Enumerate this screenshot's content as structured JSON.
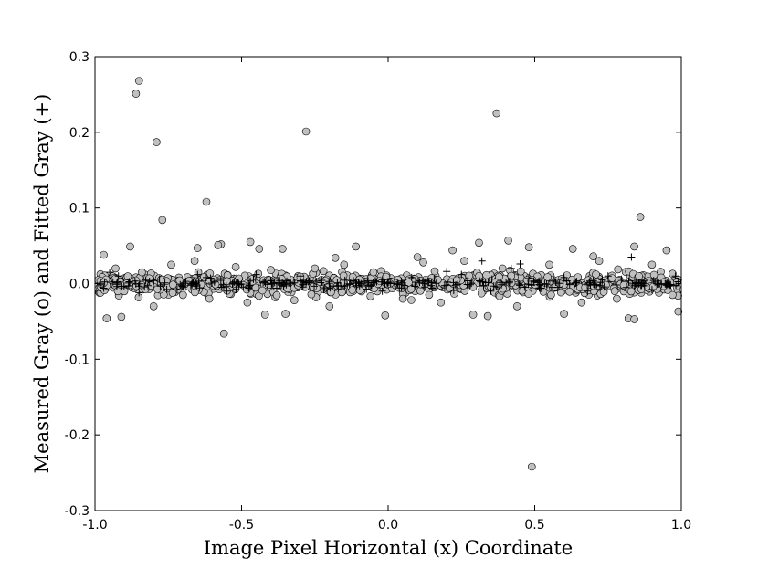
{
  "chart_data": {
    "type": "scatter",
    "title": "",
    "xlabel": "Image Pixel Horizontal (x) Coordinate",
    "ylabel": "Measured Gray (o) and Fitted Gray (+)",
    "xlim": [
      -1.0,
      1.0
    ],
    "ylim": [
      -0.3,
      0.3
    ],
    "grid": false,
    "xticks": [
      -1.0,
      -0.5,
      0.0,
      0.5,
      1.0
    ],
    "xtick_labels": [
      "-1.0",
      "-0.5",
      "0.0",
      "0.5",
      "1.0"
    ],
    "yticks": [
      -0.3,
      -0.2,
      -0.1,
      0.0,
      0.1,
      0.2,
      0.3
    ],
    "ytick_labels": [
      "-0.3",
      "-0.2",
      "-0.1",
      "0.0",
      "0.1",
      "0.2",
      "0.3"
    ],
    "series": [
      {
        "marker": "circle",
        "color": "#c0c0c0",
        "points": [
          [
            -0.85,
            0.268
          ],
          [
            -0.86,
            0.251
          ],
          [
            -0.79,
            0.187
          ],
          [
            -0.77,
            0.084
          ],
          [
            -0.62,
            0.108
          ],
          [
            -0.57,
            0.052
          ],
          [
            -0.58,
            0.051
          ],
          [
            -0.56,
            -0.066
          ],
          [
            -0.28,
            0.201
          ],
          [
            0.37,
            0.225
          ],
          [
            0.49,
            -0.242
          ],
          [
            0.86,
            0.088
          ],
          [
            -0.88,
            0.049
          ],
          [
            -0.65,
            0.047
          ],
          [
            -0.47,
            0.055
          ],
          [
            -0.44,
            0.046
          ],
          [
            -0.36,
            0.046
          ],
          [
            -0.11,
            0.049
          ],
          [
            0.31,
            0.054
          ],
          [
            0.41,
            0.057
          ],
          [
            0.48,
            0.048
          ],
          [
            0.63,
            0.046
          ],
          [
            0.84,
            0.049
          ],
          [
            0.22,
            0.044
          ],
          [
            -0.96,
            -0.046
          ],
          [
            -0.91,
            -0.044
          ],
          [
            -0.42,
            -0.041
          ],
          [
            -0.35,
            -0.04
          ],
          [
            -0.01,
            -0.042
          ],
          [
            0.29,
            -0.041
          ],
          [
            0.34,
            -0.043
          ],
          [
            0.6,
            -0.04
          ],
          [
            0.82,
            -0.046
          ],
          [
            0.84,
            -0.047
          ],
          [
            0.99,
            -0.037
          ],
          [
            0.95,
            0.044
          ],
          [
            -0.97,
            0.038
          ],
          [
            -0.93,
            0.02
          ],
          [
            -0.9,
            -0.01
          ],
          [
            -0.84,
            0.015
          ],
          [
            -0.8,
            -0.03
          ],
          [
            -0.74,
            0.025
          ],
          [
            -0.7,
            -0.015
          ],
          [
            -0.66,
            0.03
          ],
          [
            -0.61,
            -0.02
          ],
          [
            -0.52,
            0.022
          ],
          [
            -0.48,
            -0.025
          ],
          [
            -0.4,
            0.018
          ],
          [
            -0.32,
            -0.022
          ],
          [
            -0.25,
            0.02
          ],
          [
            -0.2,
            -0.03
          ],
          [
            -0.15,
            0.025
          ],
          [
            -0.05,
            0.015
          ],
          [
            0.05,
            -0.02
          ],
          [
            0.12,
            0.028
          ],
          [
            0.18,
            -0.025
          ],
          [
            0.26,
            0.03
          ],
          [
            0.39,
            0.02
          ],
          [
            0.44,
            -0.03
          ],
          [
            0.55,
            0.025
          ],
          [
            0.66,
            -0.025
          ],
          [
            0.72,
            0.03
          ],
          [
            0.78,
            -0.02
          ],
          [
            0.9,
            0.025
          ],
          [
            0.97,
            -0.015
          ],
          [
            0.1,
            0.035
          ],
          [
            -0.18,
            0.034
          ],
          [
            0.7,
            0.036
          ]
        ]
      },
      {
        "marker": "plus",
        "color": "#000000",
        "points": [
          [
            -0.95,
            0.015
          ],
          [
            -0.97,
            -0.006
          ],
          [
            -0.92,
            0.01
          ],
          [
            -0.85,
            -0.012
          ],
          [
            -0.78,
            0.006
          ],
          [
            -0.72,
            -0.008
          ],
          [
            -0.62,
            0.008
          ],
          [
            -0.55,
            -0.01
          ],
          [
            -0.45,
            0.012
          ],
          [
            -0.38,
            -0.006
          ],
          [
            -0.3,
            0.01
          ],
          [
            -0.22,
            -0.008
          ],
          [
            -0.12,
            0.006
          ],
          [
            -0.02,
            -0.01
          ],
          [
            0.08,
            0.008
          ],
          [
            0.15,
            -0.006
          ],
          [
            0.25,
            0.012
          ],
          [
            0.32,
            0.03
          ],
          [
            0.35,
            -0.01
          ],
          [
            0.42,
            0.02
          ],
          [
            0.52,
            -0.006
          ],
          [
            0.6,
            0.008
          ],
          [
            0.68,
            -0.01
          ],
          [
            0.75,
            0.01
          ],
          [
            0.83,
            0.035
          ],
          [
            0.9,
            -0.008
          ],
          [
            0.98,
            0.01
          ],
          [
            -0.65,
            0.012
          ],
          [
            0.45,
            0.026
          ],
          [
            0.2,
            0.016
          ]
        ]
      }
    ]
  }
}
